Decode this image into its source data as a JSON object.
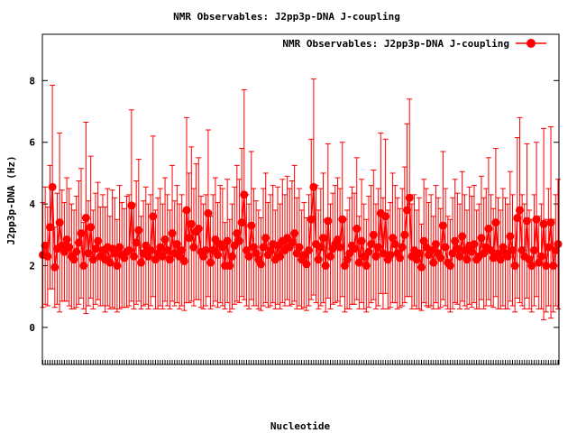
{
  "chart_data": {
    "type": "line",
    "title": "NMR Observables: J2pp3p-DNA J-coupling",
    "xlabel": "Nucleotide",
    "ylabel": "J2pp3p-DNA (Hz)",
    "ylim": [
      -1.2,
      9.5
    ],
    "yticks": [
      0,
      2,
      4,
      6,
      8
    ],
    "grid": false,
    "legend_position": "top-right",
    "series": [
      {
        "name": "NMR Observables: J2pp3p-DNA J-coupling",
        "color": "#ff0000",
        "values": [
          2.35,
          2.65,
          2.3,
          3.25,
          4.55,
          1.95,
          2.55,
          3.4,
          2.65,
          2.45,
          2.85,
          2.6,
          2.3,
          2.2,
          2.45,
          2.75,
          3.05,
          2.0,
          3.55,
          2.4,
          3.25,
          2.2,
          2.55,
          2.8,
          2.3,
          2.5,
          2.2,
          2.6,
          2.1,
          2.55,
          2.4,
          2.0,
          2.6,
          2.35,
          2.25,
          2.45,
          2.5,
          3.95,
          2.3,
          2.75,
          3.15,
          2.1,
          2.4,
          2.65,
          2.3,
          2.5,
          3.6,
          2.2,
          2.4,
          2.6,
          2.3,
          2.85,
          2.5,
          2.2,
          3.05,
          2.4,
          2.7,
          2.3,
          2.5,
          2.15,
          3.8,
          2.9,
          3.35,
          2.6,
          3.1,
          3.2,
          2.45,
          2.3,
          2.5,
          3.7,
          2.1,
          2.5,
          2.85,
          2.35,
          2.7,
          2.6,
          2.0,
          2.8,
          2.0,
          2.3,
          2.65,
          3.05,
          2.8,
          3.4,
          4.3,
          2.5,
          2.3,
          3.3,
          2.6,
          2.4,
          2.2,
          2.05,
          2.6,
          2.9,
          2.35,
          2.5,
          2.7,
          2.2,
          2.65,
          2.3,
          2.8,
          2.5,
          2.9,
          2.6,
          2.75,
          3.05,
          2.4,
          2.6,
          2.2,
          2.35,
          2.05,
          2.5,
          3.5,
          4.55,
          2.7,
          2.2,
          2.6,
          2.9,
          2.0,
          3.45,
          2.3,
          2.55,
          2.7,
          2.85,
          2.6,
          3.5,
          2.0,
          2.2,
          2.4,
          2.65,
          2.55,
          3.2,
          2.1,
          2.8,
          2.3,
          2.0,
          2.45,
          2.7,
          3.0,
          2.3,
          2.6,
          3.7,
          2.4,
          3.6,
          2.2,
          2.35,
          2.9,
          2.7,
          2.4,
          2.25,
          2.6,
          3.0,
          3.8,
          4.2,
          2.3,
          2.5,
          2.2,
          2.4,
          1.95,
          2.8,
          2.6,
          2.35,
          2.5,
          2.1,
          2.7,
          2.4,
          2.25,
          3.3,
          2.6,
          2.1,
          2.0,
          2.4,
          2.8,
          2.55,
          2.3,
          2.95,
          2.5,
          2.2,
          2.65,
          2.45,
          2.7,
          2.2,
          2.3,
          2.9,
          2.4,
          2.6,
          3.2,
          2.5,
          2.25,
          3.4,
          2.4,
          2.2,
          2.6,
          2.4,
          2.3,
          2.95,
          2.5,
          2.0,
          3.55,
          3.8,
          2.5,
          2.3,
          3.45,
          2.2,
          2.0,
          2.5,
          3.5,
          2.1,
          2.3,
          3.35,
          2.0,
          2.6,
          3.4,
          2.0,
          2.5,
          2.7
        ],
        "errors": [
          1.7,
          1.9,
          1.6,
          2.0,
          3.3,
          1.3,
          1.8,
          2.9,
          1.8,
          1.6,
          2.0,
          1.9,
          1.7,
          1.6,
          1.8,
          2.0,
          2.1,
          1.4,
          3.1,
          1.7,
          2.3,
          1.6,
          1.8,
          1.9,
          1.6,
          1.8,
          1.7,
          1.9,
          1.5,
          1.9,
          1.8,
          1.5,
          2.0,
          1.7,
          1.6,
          1.8,
          1.8,
          3.1,
          1.7,
          2.0,
          2.3,
          1.5,
          1.7,
          1.9,
          1.7,
          1.8,
          2.6,
          1.6,
          1.8,
          1.9,
          1.7,
          2.0,
          1.8,
          1.6,
          2.2,
          1.7,
          1.9,
          1.7,
          1.8,
          1.6,
          3.0,
          2.1,
          2.5,
          1.9,
          2.2,
          2.3,
          1.8,
          1.7,
          1.8,
          2.7,
          1.5,
          1.8,
          2.0,
          1.7,
          1.9,
          1.9,
          1.4,
          2.0,
          1.5,
          1.7,
          1.9,
          2.2,
          2.0,
          2.4,
          3.4,
          1.8,
          1.7,
          2.4,
          1.9,
          1.7,
          1.6,
          1.5,
          1.9,
          2.1,
          1.7,
          1.8,
          1.9,
          1.6,
          1.9,
          1.7,
          2.0,
          1.8,
          2.0,
          1.9,
          2.0,
          2.2,
          1.8,
          1.9,
          1.6,
          1.7,
          1.5,
          1.8,
          2.6,
          3.5,
          1.9,
          1.6,
          1.9,
          2.1,
          1.5,
          2.5,
          1.7,
          1.8,
          1.9,
          2.0,
          1.9,
          2.5,
          1.5,
          1.6,
          1.8,
          1.9,
          1.8,
          2.3,
          1.5,
          2.0,
          1.7,
          1.5,
          1.8,
          1.9,
          2.1,
          1.7,
          1.9,
          2.6,
          1.8,
          2.5,
          1.6,
          1.7,
          2.1,
          1.9,
          1.8,
          1.6,
          1.9,
          2.2,
          2.8,
          3.2,
          1.7,
          1.8,
          1.6,
          1.8,
          1.4,
          2.0,
          1.9,
          1.7,
          1.8,
          1.5,
          1.9,
          1.8,
          1.6,
          2.4,
          1.9,
          1.5,
          1.5,
          1.8,
          2.0,
          1.8,
          1.7,
          2.1,
          1.8,
          1.6,
          1.9,
          1.8,
          1.9,
          1.6,
          1.7,
          2.0,
          1.8,
          1.9,
          2.3,
          1.8,
          1.6,
          2.4,
          1.8,
          1.6,
          1.9,
          1.8,
          1.7,
          2.1,
          1.8,
          1.5,
          2.6,
          3.0,
          1.8,
          1.7,
          2.5,
          1.6,
          1.5,
          1.8,
          2.5,
          1.5,
          1.7,
          3.1,
          1.5,
          1.9,
          3.1,
          1.5,
          1.8,
          2.1
        ]
      }
    ]
  }
}
